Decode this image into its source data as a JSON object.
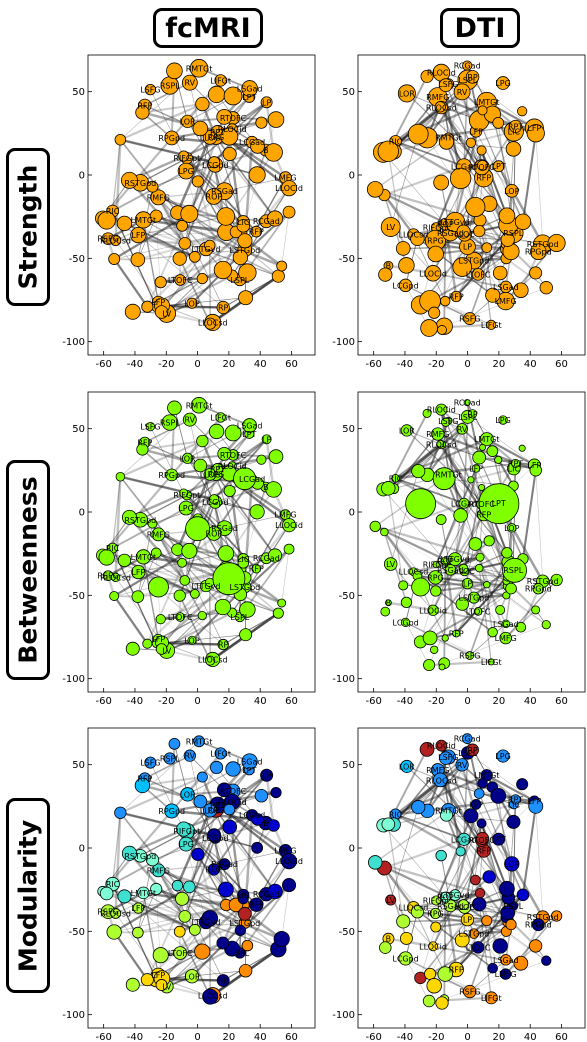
{
  "columns": [
    "fcMRI",
    "DTI"
  ],
  "rows": [
    "Strength",
    "Betweenness",
    "Modularity"
  ],
  "axes": {
    "x_ticks": [
      "-60",
      "-40",
      "-20",
      "0",
      "20",
      "40",
      "60"
    ],
    "y_ticks": [
      "50",
      "0",
      "-50",
      "-100"
    ]
  },
  "node_labels": [
    "LFP",
    "RFP",
    "LFP",
    "RFP",
    "LIFGt",
    "LMFG",
    "RMFG",
    "RIFGpt",
    "LSFG",
    "RSFG",
    "LPG",
    "RPG",
    "LIC",
    "RIC",
    "LCGad",
    "RCGad",
    "LPT",
    "RPT",
    "LSGad",
    "RSGad",
    "LSTGpd",
    "RSTGpd",
    "LMTGt",
    "RMTGt",
    "LTOFC",
    "RTOFC",
    "LSPL",
    "RSPL",
    "LV",
    "RV",
    "LLOCsd",
    "RLOCsd",
    "LLOCid",
    "RLOCid",
    "LOP",
    "ROP",
    "LP",
    "RP",
    "B",
    "LLOC",
    "LOR",
    "LCGpd",
    "RPGpd",
    "LTTGvd"
  ],
  "colors": {
    "strength": "#ffa500",
    "betweenness": "#7fff00",
    "modularity": [
      "#1e90ff",
      "#00008b",
      "#40e0d0",
      "#7fffd4",
      "#adff2f",
      "#ffd700",
      "#ff8c00",
      "#b22222",
      "#00bfff",
      "#0000cd"
    ]
  }
}
